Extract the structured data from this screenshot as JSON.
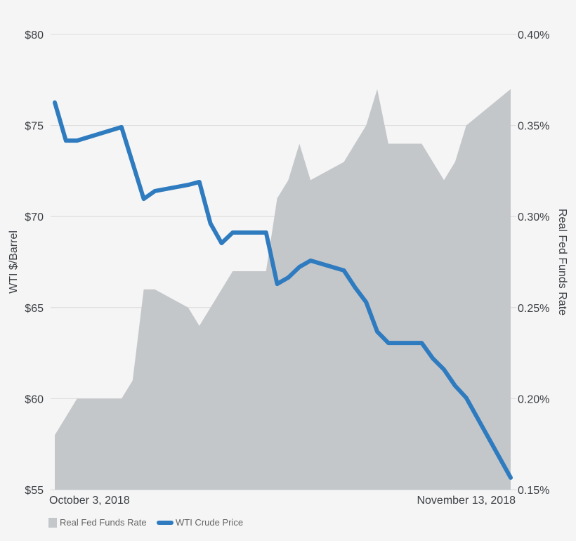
{
  "chart_data": {
    "type": "line",
    "title": "",
    "x_unit": "days since October 3, 2018",
    "x_tick_labels": [
      "October 3, 2018",
      "November 13, 2018"
    ],
    "xlim": [
      0,
      41
    ],
    "y_left": {
      "label": "WTI $/Barrel",
      "ylim": [
        55,
        80
      ],
      "ticks": [
        80,
        75,
        70,
        65,
        60,
        55
      ],
      "tick_labels": [
        "$80",
        "$75",
        "$70",
        "$65",
        "$60",
        "$55"
      ]
    },
    "y_right": {
      "label": "Real Fed Funds Rate",
      "ylim": [
        0.15,
        0.4
      ],
      "ticks": [
        0.4,
        0.35,
        0.3,
        0.25,
        0.2,
        0.15
      ],
      "tick_labels": [
        "0.40%",
        "0.35%",
        "0.30%",
        "0.25%",
        "0.20%",
        "0.15%"
      ]
    },
    "grid": true,
    "legend_position": "bottom-left",
    "series": [
      {
        "name": "Real Fed Funds Rate",
        "type": "area",
        "axis": "right",
        "color": "#c4c7ca",
        "x": [
          0,
          1,
          2,
          6,
          7,
          8,
          9,
          12,
          13,
          16,
          19,
          20,
          21,
          22,
          23,
          26,
          27,
          28,
          29,
          30,
          33,
          35,
          36,
          37,
          41
        ],
        "values": [
          0.18,
          0.19,
          0.2,
          0.2,
          0.21,
          0.26,
          0.26,
          0.25,
          0.24,
          0.27,
          0.27,
          0.31,
          0.32,
          0.34,
          0.32,
          0.33,
          0.34,
          0.35,
          0.37,
          0.34,
          0.34,
          0.32,
          0.33,
          0.35,
          0.37
        ]
      },
      {
        "name": "WTI Crude Price",
        "type": "line",
        "axis": "left",
        "color": "#2f7bbf",
        "x": [
          0,
          1,
          2,
          6,
          8,
          9,
          12,
          13,
          14,
          15,
          16,
          19,
          20,
          21,
          22,
          23,
          26,
          27,
          28,
          29,
          30,
          33,
          34,
          35,
          36,
          37,
          41
        ],
        "values": [
          76.26,
          74.17,
          74.17,
          74.91,
          70.97,
          71.4,
          71.74,
          71.9,
          69.62,
          68.54,
          69.12,
          69.12,
          66.3,
          66.65,
          67.23,
          67.58,
          67.04,
          66.11,
          65.3,
          63.68,
          63.06,
          63.06,
          62.21,
          61.6,
          60.71,
          60.05,
          55.66
        ]
      }
    ]
  }
}
